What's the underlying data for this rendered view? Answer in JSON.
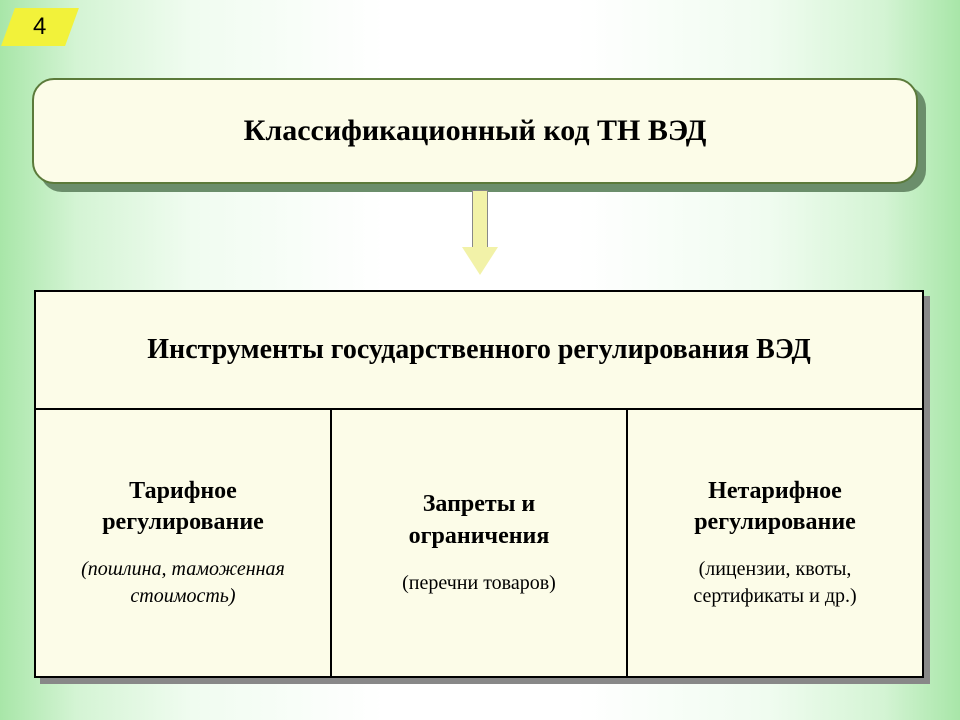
{
  "page_number": "4",
  "background": {
    "gradient_colors": [
      "#a8e6a8",
      "#d4f4d4",
      "#f0fcf0",
      "#ffffff"
    ],
    "direction": "horizontal-symmetric"
  },
  "page_number_box": {
    "fill": "#f2f23a",
    "shape": "parallelogram"
  },
  "top_box": {
    "text": "Классификационный код ТН ВЭД",
    "fill": "#fcfce8",
    "border_color": "#5b7a3a",
    "border_radius": 22,
    "font_size": 30,
    "font_weight": "bold",
    "shadow_color": "#6b8e6b"
  },
  "arrow": {
    "fill": "#f2f2a8",
    "direction": "down"
  },
  "instruments": {
    "header": "Инструменты государственного регулирования ВЭД",
    "header_fill": "#fcfce8",
    "header_border": "#000000",
    "header_font_size": 28,
    "shadow_color": "#888888",
    "columns": [
      {
        "title": "Тарифное регулирование",
        "subtitle": "(пошлина, таможенная стоимость)",
        "subtitle_italic": true
      },
      {
        "title": "Запреты и ограничения",
        "subtitle": "(перечни товаров)",
        "subtitle_italic": false
      },
      {
        "title": "Нетарифное регулирование",
        "subtitle": "(лицензии, квоты, сертификаты и др.)",
        "subtitle_italic": false
      }
    ],
    "column_fill": "#fcfce8",
    "column_border": "#000000",
    "title_font_size": 24,
    "subtitle_font_size": 20
  },
  "typography": {
    "font_family": "Times New Roman"
  }
}
